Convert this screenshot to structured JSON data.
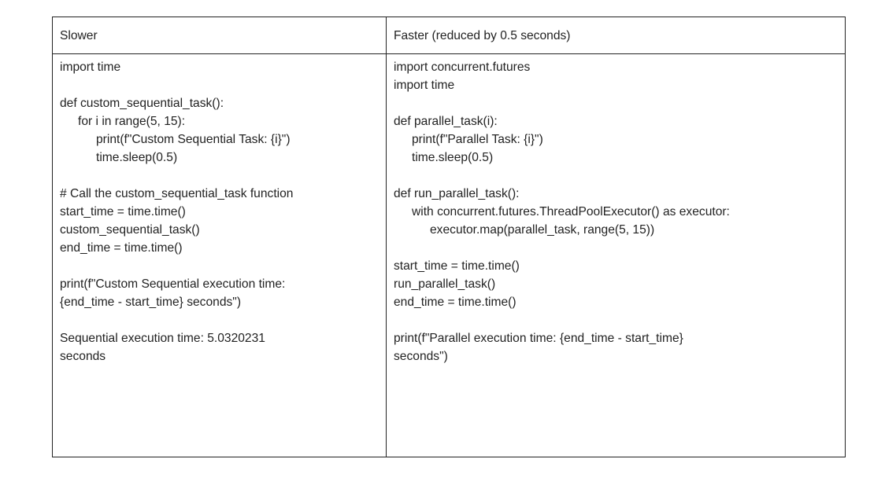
{
  "table": {
    "headers": {
      "left": "Slower",
      "right": "Faster (reduced by 0.5 seconds)"
    },
    "left_code": [
      "import time",
      "",
      "def custom_sequential_task():",
      "for i in range(5, 15):",
      "print(f\"Custom Sequential Task: {i}\")",
      "time.sleep(0.5)",
      "",
      "# Call the custom_sequential_task function",
      "start_time = time.time()",
      "custom_sequential_task()",
      "end_time = time.time()",
      "",
      "print(f\"Custom Sequential execution time:",
      "{end_time - start_time} seconds\")",
      "",
      "Sequential execution time: 5.0320231",
      "seconds"
    ],
    "right_code": [
      "import concurrent.futures",
      "import time",
      "",
      "def parallel_task(i):",
      "print(f\"Parallel Task: {i}\")",
      "time.sleep(0.5)",
      "",
      "def run_parallel_task():",
      "with concurrent.futures.ThreadPoolExecutor() as executor:",
      "executor.map(parallel_task, range(5, 15))",
      "",
      "start_time = time.time()",
      "run_parallel_task()",
      "end_time = time.time()",
      "",
      "print(f\"Parallel execution time: {end_time - start_time}",
      "seconds\")"
    ]
  }
}
